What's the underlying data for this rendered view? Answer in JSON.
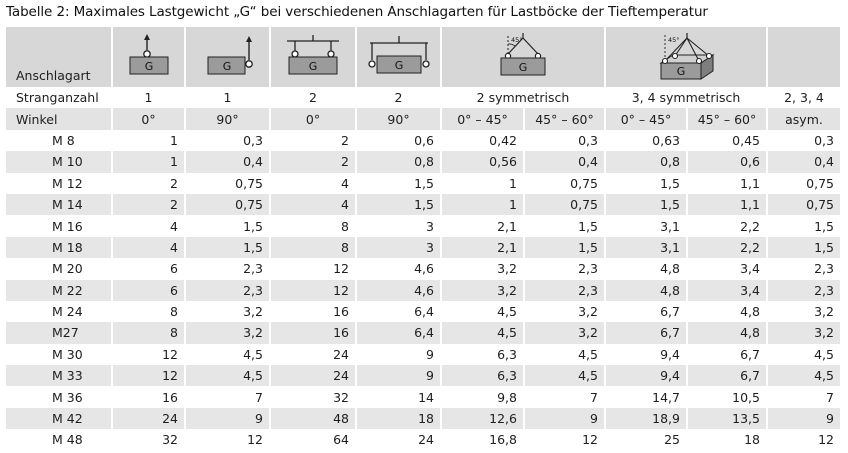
{
  "caption": "Tabelle 2: Maximales Lastgewicht „G“ bei verschiedenen Anschlagarten für Lastböcke der Tieftemperatur",
  "header": {
    "anschlagart_label": "Anschlagart",
    "icon_glyph": "G",
    "icon_angle_label": "45°",
    "icons": [
      "single-vertical-lift-icon",
      "single-side-lift-icon",
      "two-point-vertical-lift-icon",
      "two-point-horizontal-lift-icon",
      "two-leg-sling-icon",
      "three-four-leg-sling-icon"
    ],
    "stranganzahl_label": "Stranganzahl",
    "stranganzahl": [
      "1",
      "1",
      "2",
      "2",
      "2 symmetrisch",
      "3, 4 symmetrisch",
      "2, 3, 4"
    ],
    "winkel_label": "Winkel",
    "winkel": [
      "0°",
      "90°",
      "0°",
      "90°",
      "0° – 45°",
      "45° – 60°",
      "0° – 45°",
      "45° – 60°",
      "asym."
    ]
  },
  "rows": [
    {
      "thread": "M 8",
      "values": [
        "1",
        "0,3",
        "2",
        "0,6",
        "0,42",
        "0,3",
        "0,63",
        "0,45",
        "0,3"
      ]
    },
    {
      "thread": "M 10",
      "values": [
        "1",
        "0,4",
        "2",
        "0,8",
        "0,56",
        "0,4",
        "0,8",
        "0,6",
        "0,4"
      ]
    },
    {
      "thread": "M 12",
      "values": [
        "2",
        "0,75",
        "4",
        "1,5",
        "1",
        "0,75",
        "1,5",
        "1,1",
        "0,75"
      ]
    },
    {
      "thread": "M 14",
      "values": [
        "2",
        "0,75",
        "4",
        "1,5",
        "1",
        "0,75",
        "1,5",
        "1,1",
        "0,75"
      ]
    },
    {
      "thread": "M 16",
      "values": [
        "4",
        "1,5",
        "8",
        "3",
        "2,1",
        "1,5",
        "3,1",
        "2,2",
        "1,5"
      ]
    },
    {
      "thread": "M 18",
      "values": [
        "4",
        "1,5",
        "8",
        "3",
        "2,1",
        "1,5",
        "3,1",
        "2,2",
        "1,5"
      ]
    },
    {
      "thread": "M 20",
      "values": [
        "6",
        "2,3",
        "12",
        "4,6",
        "3,2",
        "2,3",
        "4,8",
        "3,4",
        "2,3"
      ]
    },
    {
      "thread": "M 22",
      "values": [
        "6",
        "2,3",
        "12",
        "4,6",
        "3,2",
        "2,3",
        "4,8",
        "3,4",
        "2,3"
      ]
    },
    {
      "thread": "M 24",
      "values": [
        "8",
        "3,2",
        "16",
        "6,4",
        "4,5",
        "3,2",
        "6,7",
        "4,8",
        "3,2"
      ]
    },
    {
      "thread": "M27",
      "values": [
        "8",
        "3,2",
        "16",
        "6,4",
        "4,5",
        "3,2",
        "6,7",
        "4,8",
        "3,2"
      ]
    },
    {
      "thread": "M 30",
      "values": [
        "12",
        "4,5",
        "24",
        "9",
        "6,3",
        "4,5",
        "9,4",
        "6,7",
        "4,5"
      ]
    },
    {
      "thread": "M 33",
      "values": [
        "12",
        "4,5",
        "24",
        "9",
        "6,3",
        "4,5",
        "9,4",
        "6,7",
        "4,5"
      ]
    },
    {
      "thread": "M 36",
      "values": [
        "16",
        "7",
        "32",
        "14",
        "9,8",
        "7",
        "14,7",
        "10,5",
        "7"
      ]
    },
    {
      "thread": "M 42",
      "values": [
        "24",
        "9",
        "48",
        "18",
        "12,6",
        "9",
        "18,9",
        "13,5",
        "9"
      ]
    },
    {
      "thread": "M 48",
      "values": [
        "32",
        "12",
        "64",
        "24",
        "16,8",
        "12",
        "25",
        "18",
        "12"
      ]
    }
  ]
}
